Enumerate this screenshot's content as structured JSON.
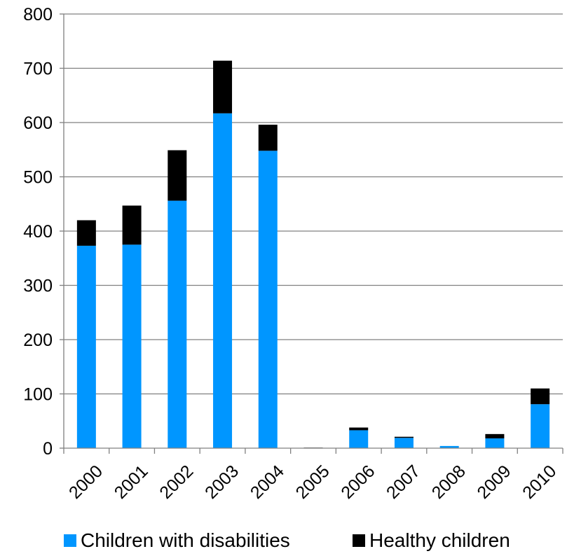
{
  "chart_data": {
    "type": "bar",
    "stacked": true,
    "categories": [
      "2000",
      "2001",
      "2002",
      "2003",
      "2004",
      "2005",
      "2006",
      "2007",
      "2008",
      "2009",
      "2010"
    ],
    "series": [
      {
        "name": "Children with disabilities",
        "color": "#0096FF",
        "values": [
          373,
          375,
          456,
          617,
          548,
          0,
          33,
          19,
          4,
          18,
          81
        ]
      },
      {
        "name": "Healthy children",
        "color": "#000000",
        "values": [
          47,
          72,
          93,
          97,
          48,
          1,
          5,
          2,
          0,
          8,
          29
        ]
      }
    ],
    "title": "",
    "xlabel": "",
    "ylabel": "",
    "ylim": [
      0,
      800
    ],
    "yticks": [
      0,
      100,
      200,
      300,
      400,
      500,
      600,
      700,
      800
    ],
    "grid": true,
    "legend_position": "bottom",
    "gridline_color": "#808080",
    "axis_color": "#808080"
  }
}
